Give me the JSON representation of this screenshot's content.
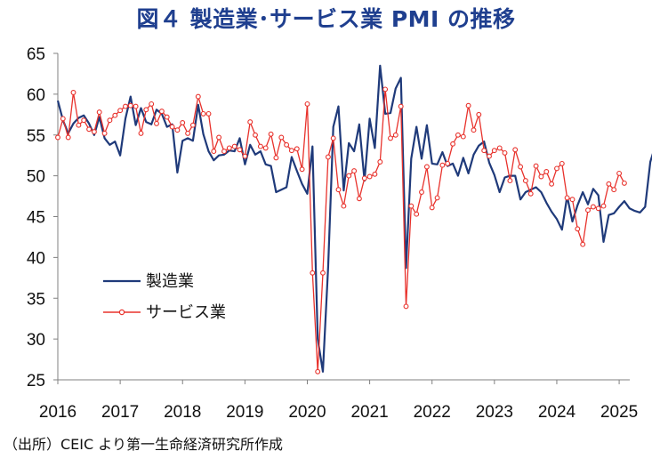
{
  "title": "図４ 製造業･サービス業 PMI の推移",
  "source": "（出所）CEIC より第一生命経済研究所作成",
  "chart_data": {
    "type": "line",
    "title": "図４ 製造業･サービス業 PMI の推移",
    "xlabel": "",
    "ylabel": "",
    "ylim": [
      25,
      65
    ],
    "yticks": [
      25,
      30,
      35,
      40,
      45,
      50,
      55,
      60,
      65
    ],
    "xticks": [
      2016,
      2017,
      2018,
      2019,
      2020,
      2021,
      2022,
      2023,
      2024,
      2025
    ],
    "xlim": [
      2016.0,
      2025.17
    ],
    "grid": false,
    "legend_position": "lower-left",
    "x_start_year": 2016,
    "series": [
      {
        "name": "製造業",
        "color": "#1f3a7a",
        "marker": "none",
        "values": [
          59.2,
          56.8,
          55.2,
          56.4,
          57.1,
          57.4,
          56.4,
          55.0,
          57.2,
          54.6,
          53.8,
          54.2,
          52.5,
          57.0,
          59.7,
          56.2,
          58.3,
          56.6,
          56.3,
          58.1,
          57.6,
          56.0,
          56.3,
          50.4,
          54.3,
          54.6,
          54.3,
          58.7,
          55.1,
          53.0,
          51.9,
          52.5,
          52.6,
          53.1,
          53.0,
          54.6,
          51.4,
          53.8,
          52.6,
          53.0,
          51.4,
          51.2,
          48.0,
          48.3,
          48.6,
          52.3,
          50.6,
          49.0,
          47.8,
          53.6,
          30.0,
          26.0,
          38.8,
          56.0,
          58.5,
          48.2,
          54.0,
          53.0,
          56.3,
          49.4,
          57.0,
          53.4,
          63.5,
          57.6,
          57.7,
          60.7,
          62.0,
          38.7,
          52.1,
          56.0,
          52.1,
          56.2,
          51.5,
          51.4,
          52.9,
          51.2,
          51.5,
          50.0,
          52.2,
          50.3,
          52.6,
          53.7,
          54.2,
          51.6,
          50.1,
          48.0,
          49.8,
          50.0,
          50.0,
          47.1,
          48.0,
          48.3,
          48.6,
          48.0,
          46.7,
          45.6,
          44.7,
          43.4,
          47.5,
          44.4,
          46.4,
          48.0,
          46.5,
          48.4,
          47.6,
          41.9,
          45.2,
          45.4,
          46.2,
          46.9,
          46.0,
          45.7,
          45.5,
          46.2,
          51.7,
          53.8
        ]
      },
      {
        "name": "サービス業",
        "color": "#e8322c",
        "marker": "circle",
        "values": [
          54.7,
          57.0,
          54.7,
          60.2,
          56.2,
          56.8,
          55.7,
          55.4,
          57.8,
          55.2,
          56.8,
          57.4,
          58.0,
          58.5,
          58.6,
          58.5,
          55.2,
          58.1,
          58.8,
          56.4,
          57.9,
          57.2,
          56.0,
          55.6,
          56.5,
          55.2,
          56.2,
          59.7,
          57.6,
          57.6,
          53.0,
          54.7,
          53.0,
          53.4,
          53.6,
          53.2,
          52.4,
          56.6,
          55.0,
          53.6,
          53.4,
          55.1,
          52.2,
          54.7,
          53.8,
          53.1,
          53.3,
          50.8,
          58.8,
          38.1,
          26.0,
          38.1,
          52.3,
          54.6,
          48.3,
          46.3,
          50.0,
          50.6,
          47.2,
          49.7,
          49.9,
          50.2,
          51.7,
          60.6,
          54.6,
          55.0,
          58.5,
          34.0,
          46.3,
          45.3,
          48.0,
          51.1,
          46.1,
          47.3,
          51.3,
          51.5,
          53.9,
          55.0,
          54.8,
          58.6,
          55.6,
          57.5,
          53.1,
          52.4,
          53.1,
          53.4,
          52.8,
          49.4,
          53.2,
          51.1,
          49.4,
          47.8,
          51.2,
          49.9,
          50.5,
          49.0,
          50.9,
          51.5,
          47.3,
          47.1,
          43.5,
          41.6,
          45.8,
          46.2,
          46.0,
          46.3,
          49.0,
          48.3,
          50.3,
          49.1
        ]
      }
    ]
  },
  "legend": {
    "items": [
      "製造業",
      "サービス業"
    ]
  }
}
